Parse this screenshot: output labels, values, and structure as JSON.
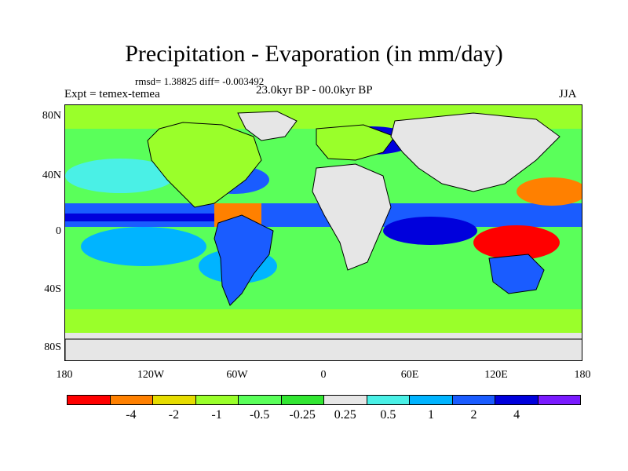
{
  "title": "Precipitation - Evaporation (in mm/day)",
  "stats": "rmsd= 1.38825 diff= -0.003492",
  "experiment": "Expt = temex-temea",
  "period": "23.0kyr BP - 00.0kyr BP",
  "season": "JJA",
  "lat_labels": [
    "80N",
    "40N",
    "0",
    "40S",
    "80S"
  ],
  "lon_labels": [
    "180",
    "120W",
    "60W",
    "0",
    "60E",
    "120E",
    "180"
  ],
  "colorbar": {
    "colors": [
      "#ff0000",
      "#ff8000",
      "#e6dc00",
      "#9aff2a",
      "#5aff5a",
      "#32e632",
      "#e6e6e6",
      "#4af0e6",
      "#00b4ff",
      "#1a5cff",
      "#0000dc",
      "#7a1aff"
    ],
    "labels": [
      "-4",
      "-2",
      "-1",
      "-0.5",
      "-0.25",
      "0.25",
      "0.5",
      "1",
      "2",
      "4"
    ]
  },
  "colors": {
    "land_dry": "#e6e6e6",
    "ocean_pos": "#1a5cff",
    "ocean_neg": "#5aff5a",
    "coast": "#000000"
  }
}
